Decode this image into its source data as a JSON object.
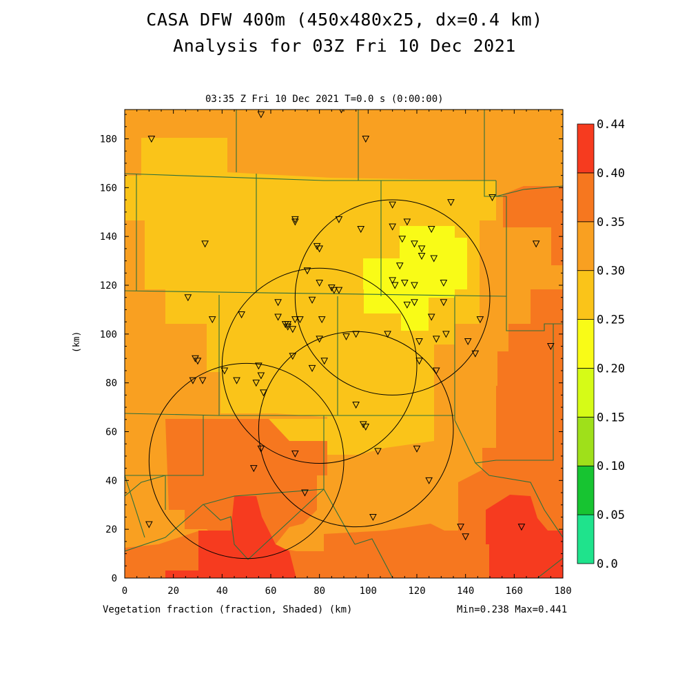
{
  "title_line1": "CASA DFW 400m (450x480x25, dx=0.4 km)",
  "title_line2": "Analysis for 03Z Fri 10 Dec 2021",
  "plot_header": "03:35 Z Fri 10 Dec 2021   T=0.0 s (0:00:00)",
  "x_axis_label": "Vegetation fraction (fraction, Shaded)  (km)",
  "y_axis_label": "(km)",
  "min_max": "Min=0.238 Max=0.441",
  "colors": {
    "c0": "#1fe38c",
    "c1": "#17c431",
    "c2": "#9fe01a",
    "c3": "#d6fb17",
    "c4": "#f9fb17",
    "c5": "#fac419",
    "c6": "#f9a021",
    "c7": "#f6771f",
    "c8": "#f63b1f"
  },
  "chart_data": {
    "type": "heatmap",
    "xlim": [
      0,
      180
    ],
    "ylim": [
      0,
      192
    ],
    "x_ticks": [
      "0",
      "20",
      "40",
      "60",
      "80",
      "100",
      "120",
      "140",
      "160",
      "180"
    ],
    "y_ticks": [
      "0",
      "20",
      "40",
      "60",
      "80",
      "100",
      "120",
      "140",
      "160",
      "180"
    ],
    "colorbar_ticks": [
      "0.44",
      "0.40",
      "0.35",
      "0.30",
      "0.25",
      "0.20",
      "0.15",
      "0.10",
      "0.05",
      "0.0"
    ],
    "colorbar_levels": [
      0.0,
      0.05,
      0.1,
      0.15,
      0.2,
      0.25,
      0.3,
      0.35,
      0.4,
      0.44
    ],
    "radar_rings_km": [
      {
        "cx": 110,
        "cy": 115,
        "r": 40
      },
      {
        "cx": 80,
        "cy": 87,
        "r": 40
      },
      {
        "cx": 95,
        "cy": 61,
        "r": 40
      },
      {
        "cx": 50,
        "cy": 48,
        "r": 40
      }
    ],
    "stations_km": [
      [
        11,
        180
      ],
      [
        56,
        190
      ],
      [
        89,
        192
      ],
      [
        99,
        180
      ],
      [
        33,
        137
      ],
      [
        70,
        147
      ],
      [
        70,
        146
      ],
      [
        88,
        147
      ],
      [
        79,
        136
      ],
      [
        80,
        135
      ],
      [
        97,
        143
      ],
      [
        110,
        153
      ],
      [
        116,
        146
      ],
      [
        110,
        144
      ],
      [
        126,
        143
      ],
      [
        134,
        154
      ],
      [
        151,
        156
      ],
      [
        169,
        137
      ],
      [
        114,
        139
      ],
      [
        119,
        137
      ],
      [
        122,
        135
      ],
      [
        122,
        132
      ],
      [
        127,
        131
      ],
      [
        113,
        128
      ],
      [
        110,
        122
      ],
      [
        111,
        120
      ],
      [
        115,
        121
      ],
      [
        119,
        120
      ],
      [
        131,
        121
      ],
      [
        75,
        126
      ],
      [
        80,
        121
      ],
      [
        85,
        119
      ],
      [
        86,
        118
      ],
      [
        88,
        118
      ],
      [
        77,
        114
      ],
      [
        26,
        115
      ],
      [
        36,
        106
      ],
      [
        48,
        108
      ],
      [
        63,
        113
      ],
      [
        63,
        107
      ],
      [
        67,
        104
      ],
      [
        67,
        103
      ],
      [
        69,
        102
      ],
      [
        70,
        106
      ],
      [
        72,
        106
      ],
      [
        81,
        106
      ],
      [
        119,
        113
      ],
      [
        116,
        112
      ],
      [
        126,
        107
      ],
      [
        131,
        113
      ],
      [
        146,
        106
      ],
      [
        108,
        100
      ],
      [
        121,
        97
      ],
      [
        128,
        98
      ],
      [
        132,
        100
      ],
      [
        141,
        97
      ],
      [
        144,
        92
      ],
      [
        175,
        95
      ],
      [
        69,
        91
      ],
      [
        80,
        98
      ],
      [
        82,
        89
      ],
      [
        91,
        99
      ],
      [
        95,
        100
      ],
      [
        29,
        90
      ],
      [
        30,
        89
      ],
      [
        28,
        81
      ],
      [
        32,
        81
      ],
      [
        41,
        85
      ],
      [
        46,
        81
      ],
      [
        55,
        87
      ],
      [
        56,
        83
      ],
      [
        54,
        80
      ],
      [
        57,
        76
      ],
      [
        66,
        104
      ],
      [
        121,
        89
      ],
      [
        128,
        85
      ],
      [
        77,
        86
      ],
      [
        95,
        71
      ],
      [
        98,
        63
      ],
      [
        99,
        62
      ],
      [
        56,
        53
      ],
      [
        70,
        51
      ],
      [
        104,
        52
      ],
      [
        120,
        53
      ],
      [
        53,
        45
      ],
      [
        74,
        35
      ],
      [
        125,
        40
      ],
      [
        102,
        25
      ],
      [
        10,
        22
      ],
      [
        138,
        21
      ],
      [
        140,
        17
      ],
      [
        163,
        21
      ]
    ],
    "min": 0.238,
    "max": 0.441
  }
}
